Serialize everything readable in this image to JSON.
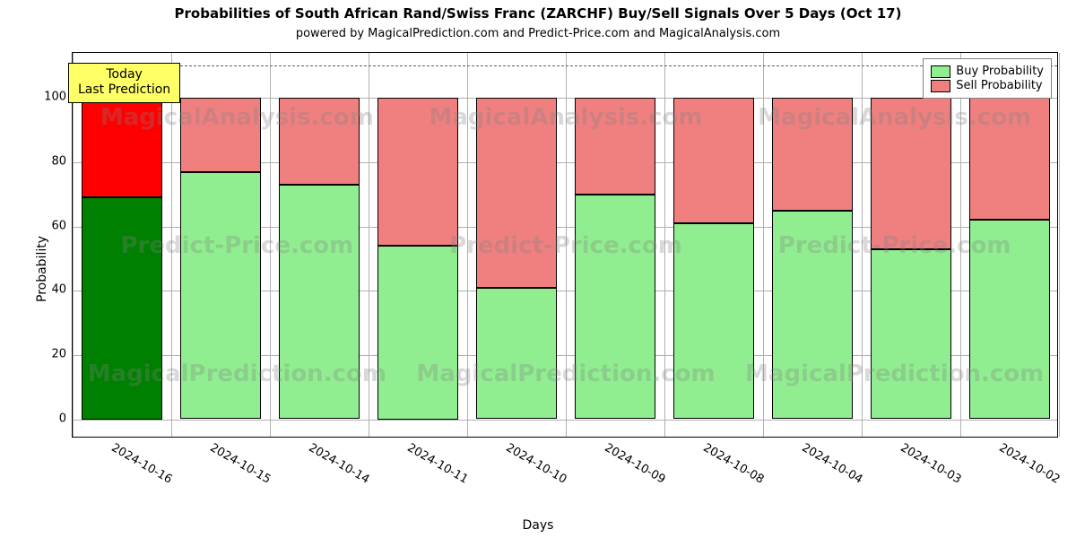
{
  "chart": {
    "type": "stacked-bar",
    "title": "Probabilities of South African Rand/Swiss Franc (ZARCHF) Buy/Sell Signals Over 5 Days (Oct 17)",
    "title_fontsize": 15,
    "subtitle": "powered by MagicalPrediction.com and Predict-Price.com and MagicalAnalysis.com",
    "subtitle_fontsize": 13,
    "ylabel": "Probability",
    "xlabel": "Days",
    "axis_label_fontsize": 14,
    "background_color": "#ffffff",
    "border_color": "#000000",
    "grid_color": "#b0b0b0",
    "ylim_min": -6,
    "ylim_max": 114,
    "yticks": [
      0,
      20,
      40,
      60,
      80,
      100
    ],
    "ref_line_value": 110,
    "ref_line_color": "#606060",
    "categories": [
      "2024-10-16",
      "2024-10-15",
      "2024-10-14",
      "2024-10-11",
      "2024-10-10",
      "2024-10-09",
      "2024-10-08",
      "2024-10-04",
      "2024-10-03",
      "2024-10-02"
    ],
    "buy_values": [
      69,
      77,
      73,
      54,
      41,
      70,
      61,
      65,
      53,
      62
    ],
    "sell_values": [
      31,
      23,
      27,
      46,
      59,
      30,
      39,
      35,
      47,
      38
    ],
    "buy_colors": [
      "#008000",
      "#90ee90",
      "#90ee90",
      "#90ee90",
      "#90ee90",
      "#90ee90",
      "#90ee90",
      "#90ee90",
      "#90ee90",
      "#90ee90"
    ],
    "sell_colors": [
      "#ff0000",
      "#f08080",
      "#f08080",
      "#f08080",
      "#f08080",
      "#f08080",
      "#f08080",
      "#f08080",
      "#f08080",
      "#f08080"
    ],
    "bar_width_ratio": 0.82,
    "annotation": {
      "text": "Today\nLast Prediction",
      "bg_color": "#ffff66",
      "border_color": "#000000",
      "fontsize": 14
    },
    "legend": {
      "items": [
        {
          "label": "Buy Probability",
          "color": "#90ee90"
        },
        {
          "label": "Sell Probability",
          "color": "#f08080"
        }
      ]
    },
    "watermark": {
      "texts": [
        "MagicalAnalysis.com",
        "Predict-Price.com",
        "MagicalPrediction.com"
      ],
      "repeat_per_row": 3,
      "color": "rgba(128,128,128,0.30)",
      "fontsize": 26
    }
  }
}
